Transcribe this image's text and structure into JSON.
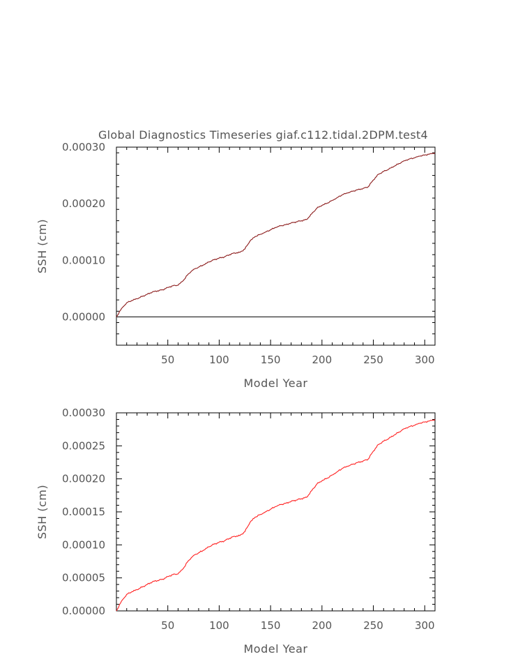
{
  "chart_data": [
    {
      "type": "line",
      "title": "Global Diagnostics Timeseries giaf.c112.tidal.2DPM.test4",
      "xlabel": "Model Year",
      "ylabel": "SSH (cm)",
      "xlim": [
        0,
        310
      ],
      "ylim": [
        -5e-05,
        0.0003
      ],
      "x_ticks": [
        "50",
        "100",
        "150",
        "200",
        "250",
        "300"
      ],
      "y_ticks": [
        "0.00000",
        "0.00010",
        "0.00020",
        "0.00030"
      ],
      "y_tick_values": [
        0,
        0.0001,
        0.0002,
        0.0003
      ],
      "zero_line": true,
      "grid": false,
      "colors": {
        "series": "#8b1a1a",
        "zero": "#000000",
        "axes": "#000000"
      },
      "series": [
        {
          "x": [
            0,
            5,
            10,
            15,
            20,
            25,
            30,
            35,
            40,
            45,
            50,
            55,
            60,
            65,
            70,
            75,
            80,
            85,
            90,
            95,
            100,
            105,
            110,
            115,
            120,
            125,
            130,
            135,
            140,
            145,
            150,
            155,
            160,
            165,
            170,
            175,
            180,
            185,
            190,
            195,
            200,
            205,
            210,
            215,
            220,
            225,
            230,
            235,
            240,
            245,
            250,
            255,
            260,
            265,
            270,
            275,
            280,
            285,
            290,
            295,
            300,
            305,
            310
          ],
          "values": [
            0.0,
            1.5e-05,
            2.5e-05,
            2.9e-05,
            3.2e-05,
            3.6e-05,
            4e-05,
            4.4e-05,
            4.6e-05,
            4.8e-05,
            5.2e-05,
            5.5e-05,
            5.6e-05,
            6.4e-05,
            7.6e-05,
            8.4e-05,
            8.8e-05,
            9.2e-05,
            9.7e-05,
            0.000101,
            0.000104,
            0.000106,
            0.00011,
            0.000113,
            0.000114,
            0.00012,
            0.000134,
            0.000142,
            0.000146,
            0.00015,
            0.000154,
            0.000158,
            0.000161,
            0.000163,
            0.000166,
            0.000168,
            0.00017,
            0.000172,
            0.000182,
            0.000192,
            0.000197,
            0.000201,
            0.000206,
            0.000211,
            0.000216,
            0.000219,
            0.000222,
            0.000225,
            0.000227,
            0.00023,
            0.000242,
            0.000252,
            0.000257,
            0.000261,
            0.000266,
            0.000271,
            0.000276,
            0.000279,
            0.000281,
            0.000284,
            0.000286,
            0.000288,
            0.00029
          ]
        }
      ]
    },
    {
      "type": "line",
      "title": "",
      "xlabel": "Model Year",
      "ylabel": "SSH (cm)",
      "xlim": [
        0,
        310
      ],
      "ylim": [
        0,
        0.0003
      ],
      "x_ticks": [
        "50",
        "100",
        "150",
        "200",
        "250",
        "300"
      ],
      "y_ticks": [
        "0.00000",
        "0.00005",
        "0.00010",
        "0.00015",
        "0.00020",
        "0.00025",
        "0.00030"
      ],
      "y_tick_values": [
        0,
        5e-05,
        0.0001,
        0.00015,
        0.0002,
        0.00025,
        0.0003
      ],
      "zero_line": false,
      "grid": false,
      "colors": {
        "series": "#ff2020",
        "axes": "#000000"
      },
      "series": [
        {
          "x": [
            0,
            5,
            10,
            15,
            20,
            25,
            30,
            35,
            40,
            45,
            50,
            55,
            60,
            65,
            70,
            75,
            80,
            85,
            90,
            95,
            100,
            105,
            110,
            115,
            120,
            125,
            130,
            135,
            140,
            145,
            150,
            155,
            160,
            165,
            170,
            175,
            180,
            185,
            190,
            195,
            200,
            205,
            210,
            215,
            220,
            225,
            230,
            235,
            240,
            245,
            250,
            255,
            260,
            265,
            270,
            275,
            280,
            285,
            290,
            295,
            300,
            305,
            310
          ],
          "values": [
            0.0,
            1.5e-05,
            2.5e-05,
            2.9e-05,
            3.2e-05,
            3.6e-05,
            4e-05,
            4.4e-05,
            4.6e-05,
            4.8e-05,
            5.2e-05,
            5.5e-05,
            5.6e-05,
            6.4e-05,
            7.6e-05,
            8.4e-05,
            8.8e-05,
            9.2e-05,
            9.7e-05,
            0.000101,
            0.000104,
            0.000106,
            0.00011,
            0.000113,
            0.000114,
            0.00012,
            0.000134,
            0.000142,
            0.000146,
            0.00015,
            0.000154,
            0.000158,
            0.000161,
            0.000163,
            0.000166,
            0.000168,
            0.00017,
            0.000172,
            0.000182,
            0.000192,
            0.000197,
            0.000201,
            0.000206,
            0.000211,
            0.000216,
            0.000219,
            0.000222,
            0.000225,
            0.000227,
            0.00023,
            0.000242,
            0.000252,
            0.000257,
            0.000261,
            0.000266,
            0.000271,
            0.000276,
            0.000279,
            0.000281,
            0.000284,
            0.000286,
            0.000288,
            0.00029
          ]
        }
      ]
    }
  ]
}
